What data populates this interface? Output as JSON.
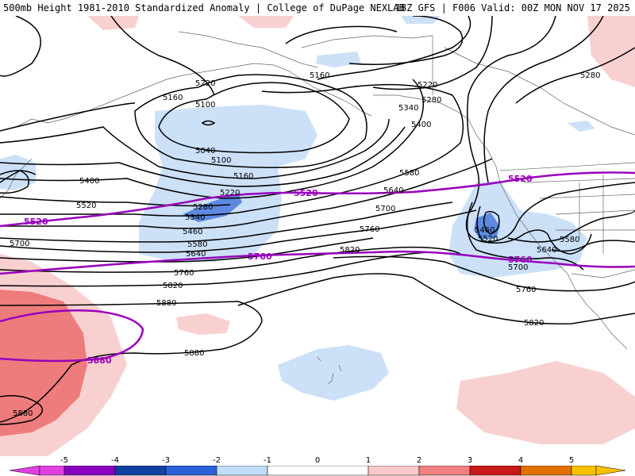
{
  "header": {
    "title_left": "500mb Height 1981-2010 Standardized Anomaly | College of DuPage NEXLAB",
    "title_right": "18Z GFS | F006 Valid: 00Z MON NOV 17 2025"
  },
  "contour_labels": [
    "5220",
    "5160",
    "5100",
    "5040",
    "5100",
    "5160",
    "5220",
    "5280",
    "5340",
    "5400",
    "5460",
    "5520",
    "5580",
    "5640",
    "5700",
    "5760",
    "5820",
    "5880",
    "5880",
    "5880",
    "5160",
    "5220",
    "5280",
    "5340",
    "5400",
    "5580",
    "5640",
    "5700",
    "5760",
    "5820",
    "5280",
    "5460",
    "5520",
    "5580",
    "5640",
    "5700",
    "5760",
    "5820"
  ],
  "climo_labels": [
    "5520",
    "5760",
    "5880",
    "5520",
    "5760"
  ],
  "legend": {
    "ticks": [
      "-5",
      "-4",
      "-3",
      "-2",
      "-1",
      "0",
      "1",
      "2",
      "3",
      "4",
      "5"
    ],
    "colors": [
      "#e040e0",
      "#8a00c0",
      "#1040a0",
      "#2a60d8",
      "#6a9ae8",
      "#c0dcf8",
      "#ffffff",
      "#ffffff",
      "#f8c8c8",
      "#f08080",
      "#c81818",
      "#e07000",
      "#f8c000"
    ]
  },
  "anomaly_colors": {
    "neg1": "#cce0f8",
    "neg2": "#5c8ae0",
    "pos1": "#f8d0d0",
    "pos2": "#ef7c7c"
  }
}
